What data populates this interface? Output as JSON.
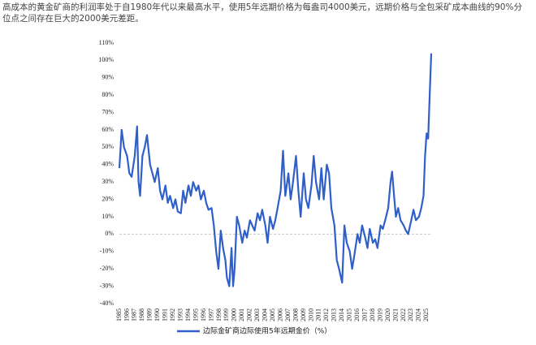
{
  "chart_data": {
    "type": "line",
    "title": "高成本的黄金矿商的利润率处于自1980年代以来最高水平，使用5年远期价格为每盎司4000美元，远期价格与全包采矿成本曲线的90%分位点之间存在巨大的2000美元差距。",
    "x": [
      1985.0,
      1985.3,
      1985.6,
      1986.0,
      1986.3,
      1986.6,
      1987.0,
      1987.3,
      1987.5,
      1987.7,
      1988.0,
      1988.3,
      1988.6,
      1989.0,
      1989.3,
      1989.6,
      1990.0,
      1990.3,
      1990.6,
      1991.0,
      1991.3,
      1991.6,
      1992.0,
      1992.3,
      1992.6,
      1993.0,
      1993.3,
      1993.6,
      1994.0,
      1994.3,
      1994.6,
      1995.0,
      1995.3,
      1995.6,
      1996.0,
      1996.3,
      1996.6,
      1997.0,
      1997.3,
      1997.6,
      1997.9,
      1998.2,
      1998.5,
      1998.8,
      1999.0,
      1999.3,
      1999.6,
      1999.8,
      2000.0,
      2000.3,
      2000.6,
      2001.0,
      2001.3,
      2001.6,
      2002.0,
      2002.3,
      2002.6,
      2003.0,
      2003.3,
      2003.6,
      2004.0,
      2004.3,
      2004.6,
      2005.0,
      2005.3,
      2005.6,
      2006.0,
      2006.3,
      2006.6,
      2007.0,
      2007.3,
      2007.6,
      2008.0,
      2008.3,
      2008.6,
      2009.0,
      2009.3,
      2009.6,
      2010.0,
      2010.3,
      2010.6,
      2011.0,
      2011.3,
      2011.6,
      2012.0,
      2012.3,
      2012.6,
      2013.0,
      2013.3,
      2013.6,
      2014.0,
      2014.3,
      2014.6,
      2015.0,
      2015.3,
      2015.6,
      2016.0,
      2016.3,
      2016.6,
      2017.0,
      2017.3,
      2017.6,
      2018.0,
      2018.3,
      2018.6,
      2019.0,
      2019.3,
      2019.6,
      2020.0,
      2020.3,
      2020.5,
      2020.8,
      2021.0,
      2021.3,
      2021.6,
      2022.0,
      2022.3,
      2022.6,
      2023.0,
      2023.3,
      2023.6,
      2024.0,
      2024.3,
      2024.6,
      2024.8,
      2025.0,
      2025.2,
      2025.4,
      2025.6
    ],
    "series": [
      {
        "name": "边际金矿商边际使用5年远期金价（%）",
        "color": "#2f5fc8",
        "values": [
          38,
          60,
          50,
          45,
          35,
          33,
          45,
          62,
          30,
          22,
          45,
          50,
          57,
          40,
          35,
          30,
          38,
          25,
          20,
          28,
          18,
          22,
          15,
          20,
          13,
          12,
          25,
          18,
          28,
          22,
          30,
          25,
          28,
          20,
          25,
          18,
          14,
          15,
          5,
          -10,
          -20,
          2,
          -8,
          -15,
          -25,
          -30,
          -8,
          -30,
          -20,
          10,
          5,
          -5,
          2,
          -2,
          8,
          5,
          2,
          12,
          8,
          14,
          5,
          -5,
          10,
          3,
          8,
          15,
          25,
          48,
          22,
          35,
          20,
          30,
          45,
          25,
          10,
          35,
          20,
          15,
          28,
          45,
          30,
          20,
          38,
          20,
          40,
          35,
          15,
          5,
          -15,
          -20,
          -28,
          5,
          -5,
          -10,
          -20,
          -12,
          0,
          -5,
          5,
          -2,
          -8,
          3,
          -5,
          -3,
          -8,
          5,
          3,
          8,
          15,
          30,
          36,
          20,
          10,
          15,
          8,
          5,
          2,
          0,
          8,
          14,
          8,
          10,
          15,
          22,
          45,
          58,
          55,
          80,
          104
        ]
      }
    ],
    "xlim": [
      1985,
      2025.6
    ],
    "xticks": [
      1985,
      1986,
      1987,
      1988,
      1989,
      1990,
      1991,
      1992,
      1993,
      1994,
      1995,
      1996,
      1997,
      1998,
      1999,
      2000,
      2001,
      2002,
      2003,
      2004,
      2005,
      2006,
      2007,
      2008,
      2009,
      2010,
      2011,
      2012,
      2013,
      2014,
      2015,
      2016,
      2017,
      2018,
      2019,
      2020,
      2021,
      2022,
      2023,
      2024,
      2025
    ],
    "ylim": [
      -40,
      110
    ],
    "yticks": [
      {
        "value": -40,
        "label": "-40%"
      },
      {
        "value": -30,
        "label": "-30%"
      },
      {
        "value": -20,
        "label": "-20%"
      },
      {
        "value": -10,
        "label": "-10%"
      },
      {
        "value": 0,
        "label": "0%"
      },
      {
        "value": 10,
        "label": "10%"
      },
      {
        "value": 20,
        "label": "20%"
      },
      {
        "value": 30,
        "label": "30%"
      },
      {
        "value": 40,
        "label": "40%"
      },
      {
        "value": 50,
        "label": "50%"
      },
      {
        "value": 60,
        "label": "60%"
      },
      {
        "value": 70,
        "label": "70%"
      },
      {
        "value": 80,
        "label": "80%"
      },
      {
        "value": 90,
        "label": "90%"
      },
      {
        "value": 100,
        "label": "100%"
      },
      {
        "value": 110,
        "label": "110%"
      }
    ]
  }
}
